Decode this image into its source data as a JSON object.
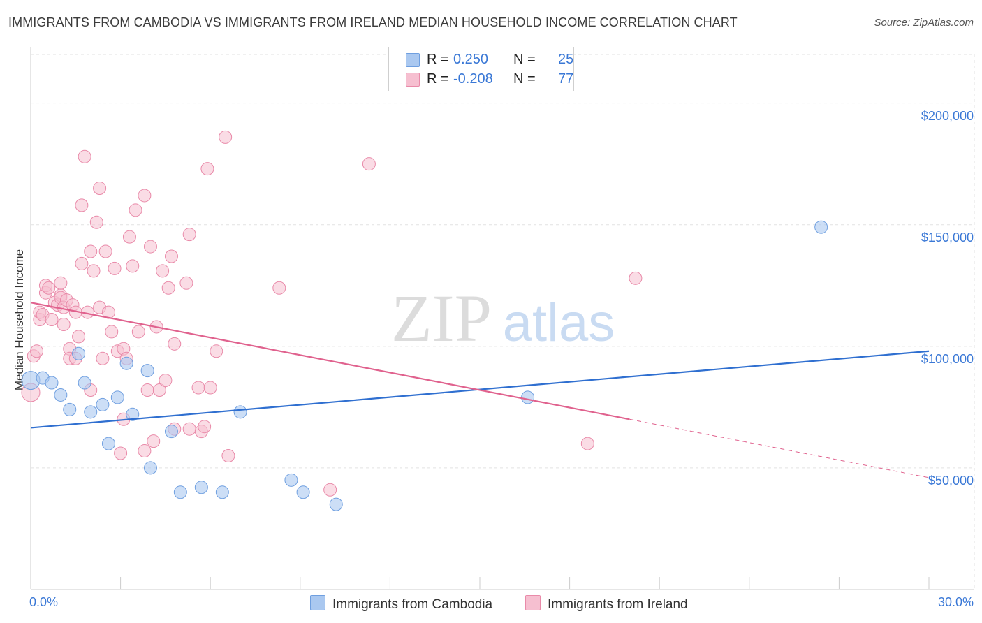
{
  "title": "IMMIGRANTS FROM CAMBODIA VS IMMIGRANTS FROM IRELAND MEDIAN HOUSEHOLD INCOME CORRELATION CHART",
  "source": "Source: ZipAtlas.com",
  "watermark": {
    "zip": "ZIP",
    "atlas": "atlas"
  },
  "legend": {
    "r_label": "R =",
    "n_label": "N =",
    "cambodia": {
      "r": "0.250",
      "n": "25"
    },
    "ireland": {
      "r": "-0.208",
      "n": "77"
    }
  },
  "colors": {
    "cambodia_fill": "#aac8f0",
    "cambodia_stroke": "#6f9fe0",
    "cambodia_line": "#2f6fd0",
    "ireland_fill": "#f6bfd0",
    "ireland_stroke": "#e98aa9",
    "ireland_line": "#e0628e",
    "axis_text": "#3a78d6",
    "grid": "#e2e2e2"
  },
  "chart_data": {
    "type": "scatter",
    "title": "IMMIGRANTS FROM CAMBODIA VS IMMIGRANTS FROM IRELAND MEDIAN HOUSEHOLD INCOME CORRELATION CHART",
    "xlabel": "",
    "ylabel": "Median Household Income",
    "xlim": [
      0,
      30
    ],
    "ylim": [
      0,
      220000
    ],
    "x_tick_labels": {
      "min": "0.0%",
      "max": "30.0%"
    },
    "y_ticks": [
      {
        "value": 50000,
        "label": "$50,000"
      },
      {
        "value": 100000,
        "label": "$100,000"
      },
      {
        "value": 150000,
        "label": "$150,000"
      },
      {
        "value": 200000,
        "label": "$200,000"
      }
    ],
    "grid": true,
    "series": [
      {
        "name": "Immigrants from Cambodia",
        "trend": {
          "x0": 0,
          "y0": 66500,
          "x1": 30,
          "y1": 98000
        },
        "points": [
          [
            0.0,
            86000
          ],
          [
            0.4,
            87000
          ],
          [
            0.7,
            85000
          ],
          [
            1.0,
            80000
          ],
          [
            1.3,
            74000
          ],
          [
            1.6,
            97000
          ],
          [
            1.8,
            85000
          ],
          [
            2.0,
            73000
          ],
          [
            2.4,
            76000
          ],
          [
            2.6,
            60000
          ],
          [
            2.9,
            79000
          ],
          [
            3.2,
            93000
          ],
          [
            3.4,
            72000
          ],
          [
            3.9,
            90000
          ],
          [
            4.0,
            50000
          ],
          [
            4.7,
            65000
          ],
          [
            5.0,
            40000
          ],
          [
            5.7,
            42000
          ],
          [
            6.4,
            40000
          ],
          [
            7.0,
            73000
          ],
          [
            8.7,
            45000
          ],
          [
            9.1,
            40000
          ],
          [
            10.2,
            35000
          ],
          [
            16.6,
            79000
          ],
          [
            26.4,
            149000
          ]
        ]
      },
      {
        "name": "Immigrants from Ireland",
        "trend": {
          "x0": 0,
          "y0": 118000,
          "x1": 20,
          "y1": 70000,
          "dash_to_x": 30,
          "dash_to_y": 46000
        },
        "points": [
          [
            0.0,
            81000
          ],
          [
            0.1,
            96000
          ],
          [
            0.2,
            98000
          ],
          [
            0.3,
            111000
          ],
          [
            0.3,
            114000
          ],
          [
            0.4,
            113000
          ],
          [
            0.5,
            122000
          ],
          [
            0.5,
            125000
          ],
          [
            0.6,
            124000
          ],
          [
            0.7,
            111000
          ],
          [
            0.8,
            118000
          ],
          [
            0.9,
            117000
          ],
          [
            1.0,
            121000
          ],
          [
            1.0,
            120000
          ],
          [
            1.0,
            126000
          ],
          [
            1.1,
            109000
          ],
          [
            1.1,
            116000
          ],
          [
            1.2,
            119000
          ],
          [
            1.3,
            99000
          ],
          [
            1.3,
            95000
          ],
          [
            1.4,
            117000
          ],
          [
            1.5,
            95000
          ],
          [
            1.5,
            114000
          ],
          [
            1.6,
            104000
          ],
          [
            1.7,
            158000
          ],
          [
            1.7,
            134000
          ],
          [
            1.8,
            178000
          ],
          [
            1.9,
            114000
          ],
          [
            2.0,
            82000
          ],
          [
            2.0,
            139000
          ],
          [
            2.1,
            131000
          ],
          [
            2.2,
            151000
          ],
          [
            2.3,
            165000
          ],
          [
            2.3,
            116000
          ],
          [
            2.4,
            95000
          ],
          [
            2.5,
            139000
          ],
          [
            2.6,
            114000
          ],
          [
            2.7,
            106000
          ],
          [
            2.8,
            132000
          ],
          [
            2.9,
            98000
          ],
          [
            3.0,
            56000
          ],
          [
            3.1,
            70000
          ],
          [
            3.1,
            99000
          ],
          [
            3.2,
            95000
          ],
          [
            3.3,
            145000
          ],
          [
            3.4,
            133000
          ],
          [
            3.5,
            156000
          ],
          [
            3.6,
            106000
          ],
          [
            3.8,
            162000
          ],
          [
            3.8,
            57000
          ],
          [
            3.9,
            82000
          ],
          [
            4.0,
            141000
          ],
          [
            4.1,
            61000
          ],
          [
            4.2,
            108000
          ],
          [
            4.3,
            82000
          ],
          [
            4.4,
            131000
          ],
          [
            4.5,
            86000
          ],
          [
            4.6,
            124000
          ],
          [
            4.7,
            137000
          ],
          [
            4.8,
            101000
          ],
          [
            4.8,
            66000
          ],
          [
            5.2,
            126000
          ],
          [
            5.3,
            146000
          ],
          [
            5.3,
            66000
          ],
          [
            5.6,
            83000
          ],
          [
            5.7,
            65000
          ],
          [
            5.8,
            67000
          ],
          [
            5.9,
            173000
          ],
          [
            6.0,
            83000
          ],
          [
            6.2,
            98000
          ],
          [
            6.5,
            186000
          ],
          [
            6.6,
            55000
          ],
          [
            8.3,
            124000
          ],
          [
            10.0,
            41000
          ],
          [
            11.3,
            175000
          ],
          [
            18.6,
            60000
          ],
          [
            20.2,
            128000
          ]
        ]
      }
    ]
  },
  "bottom_legend": {
    "cambodia": "Immigrants from Cambodia",
    "ireland": "Immigrants from Ireland"
  }
}
